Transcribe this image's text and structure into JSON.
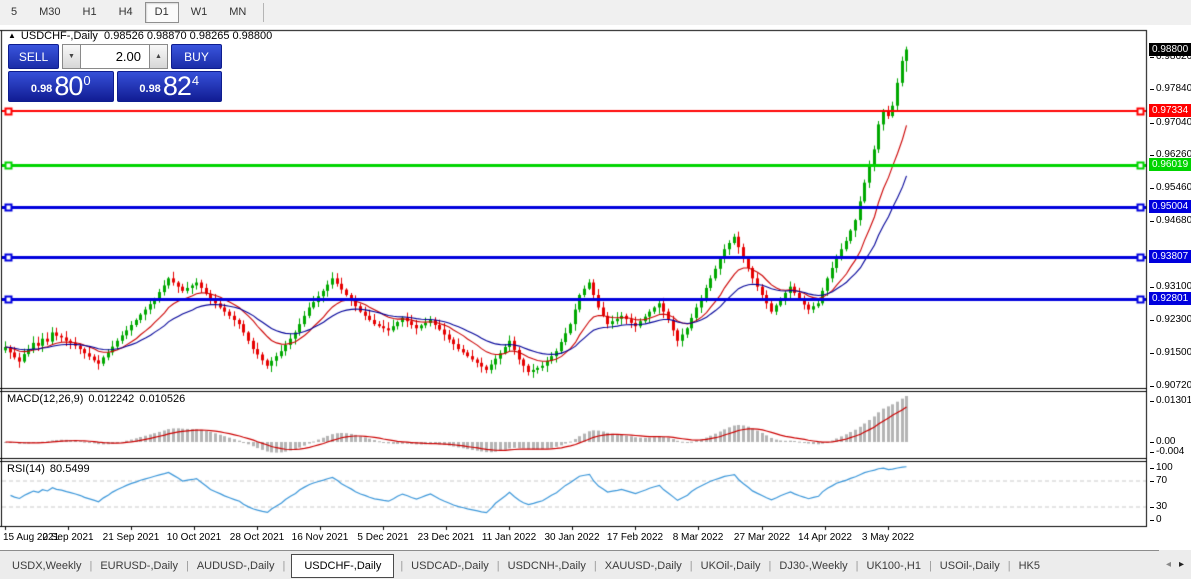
{
  "toolbar": {
    "timeframes": [
      {
        "label": "5",
        "active": false
      },
      {
        "label": "M30",
        "active": false
      },
      {
        "label": "H1",
        "active": false
      },
      {
        "label": "H4",
        "active": false
      },
      {
        "label": "D1",
        "active": true
      },
      {
        "label": "W1",
        "active": false
      },
      {
        "label": "MN",
        "active": false
      }
    ]
  },
  "chart": {
    "title": "USDCHF-,Daily",
    "ohlc": "0.98526 0.98870 0.98265 0.98800"
  },
  "trade_panel": {
    "sell_label": "SELL",
    "buy_label": "BUY",
    "volume": "2.00",
    "sell_price": {
      "small": "0.98",
      "big": "80",
      "sup": "0"
    },
    "buy_price": {
      "small": "0.98",
      "big": "82",
      "sup": "4"
    }
  },
  "indicators": {
    "macd": {
      "label": "MACD(12,26,9)",
      "value_main": "0.012242",
      "value_signal": "0.010526"
    },
    "rsi": {
      "label": "RSI(14)",
      "value": "80.5499"
    }
  },
  "icons": {
    "collapse": "▲",
    "caret_up": "▲",
    "caret_down": "▼",
    "tab_scroll_left": "◂",
    "tab_scroll_right": "▸"
  },
  "colors": {
    "up": "#00a800",
    "down": "#e60000",
    "ma_fast": "#cc0000",
    "ma_slow": "#000099",
    "macd_hist": "#b4b4b4",
    "macd_signal": "#cc0000",
    "rsi": "#3a96d9",
    "rsi_level_dash": "#c8c8c8",
    "axis_black": "#000000"
  },
  "chart_data": {
    "type": "candlestick",
    "symbol": "USDCHF-",
    "timeframe": "Daily",
    "last_ohlc": {
      "open": 0.98526,
      "high": 0.9887,
      "low": 0.98265,
      "close": 0.988
    },
    "price_top": 0.99269,
    "price_bottom": 0.90665,
    "closes": [
      0.9165,
      0.9152,
      0.914,
      0.913,
      0.9148,
      0.916,
      0.9175,
      0.9168,
      0.9185,
      0.9178,
      0.92,
      0.9192,
      0.9188,
      0.918,
      0.9175,
      0.9168,
      0.916,
      0.915,
      0.9142,
      0.9133,
      0.9125,
      0.914,
      0.9152,
      0.9166,
      0.918,
      0.9193,
      0.9205,
      0.9218,
      0.923,
      0.9243,
      0.9255,
      0.9268,
      0.928,
      0.9297,
      0.9313,
      0.933,
      0.932,
      0.931,
      0.93,
      0.9307,
      0.9313,
      0.932,
      0.9307,
      0.9293,
      0.928,
      0.927,
      0.926,
      0.925,
      0.924,
      0.923,
      0.922,
      0.92,
      0.918,
      0.916,
      0.9147,
      0.9133,
      0.912,
      0.9132,
      0.9143,
      0.9155,
      0.917,
      0.9185,
      0.92,
      0.922,
      0.924,
      0.926,
      0.9273,
      0.9287,
      0.93,
      0.9315,
      0.933,
      0.9317,
      0.9303,
      0.929,
      0.9277,
      0.9263,
      0.925,
      0.924,
      0.923,
      0.922,
      0.9215,
      0.921,
      0.9205,
      0.9215,
      0.9225,
      0.9235,
      0.9227,
      0.9218,
      0.921,
      0.9217,
      0.9223,
      0.923,
      0.9218,
      0.9207,
      0.9195,
      0.9183,
      0.9172,
      0.916,
      0.9152,
      0.9143,
      0.9135,
      0.9127,
      0.9118,
      0.911,
      0.9123,
      0.9137,
      0.915,
      0.9165,
      0.918,
      0.9158,
      0.9135,
      0.912,
      0.9105,
      0.911,
      0.9115,
      0.912,
      0.9132,
      0.9143,
      0.9155,
      0.9177,
      0.9198,
      0.922,
      0.9255,
      0.929,
      0.9305,
      0.932,
      0.929,
      0.926,
      0.924,
      0.922,
      0.9227,
      0.9233,
      0.924,
      0.9232,
      0.9223,
      0.9215,
      0.9227,
      0.9238,
      0.925,
      0.926,
      0.927,
      0.925,
      0.923,
      0.9205,
      0.918,
      0.9195,
      0.921,
      0.9235,
      0.926,
      0.9283,
      0.9307,
      0.933,
      0.9353,
      0.9377,
      0.94,
      0.9415,
      0.943,
      0.9405,
      0.938,
      0.9355,
      0.933,
      0.931,
      0.929,
      0.927,
      0.925,
      0.9265,
      0.928,
      0.9295,
      0.931,
      0.9295,
      0.928,
      0.9267,
      0.9255,
      0.9263,
      0.927,
      0.93,
      0.933,
      0.9355,
      0.938,
      0.94,
      0.942,
      0.9445,
      0.947,
      0.9515,
      0.956,
      0.96,
      0.964,
      0.97,
      0.973,
      0.972,
      0.9745,
      0.98,
      0.98526,
      0.988
    ],
    "ma_lines": [
      {
        "period": 12,
        "color": "#cc0000"
      },
      {
        "period": 24,
        "color": "#000099"
      }
    ],
    "levels": [
      {
        "price": 0.97334,
        "label": "0.97334",
        "color": "#ff0000",
        "width": 2
      },
      {
        "price": 0.96019,
        "label": "0.96019",
        "color": "#00d400",
        "width": 3
      },
      {
        "price": 0.95004,
        "label": "0.95004",
        "color": "#0000dd",
        "width": 3
      },
      {
        "price": 0.93807,
        "label": "0.93807",
        "color": "#0000dd",
        "width": 3
      },
      {
        "price": 0.92801,
        "label": "0.92801",
        "color": "#0000dd",
        "width": 3
      }
    ],
    "current_price": {
      "label": "0.98800",
      "price": 0.988,
      "bg": "#000000"
    },
    "price_axis_ticks": [
      "0.98620",
      "0.97840",
      "0.97040",
      "0.96260",
      "0.95460",
      "0.94680",
      "0.93100",
      "0.92300",
      "0.91500",
      "0.90720"
    ],
    "x_axis": {
      "labels": [
        "15 Aug 2021",
        "2 Sep 2021",
        "21 Sep 2021",
        "10 Oct 2021",
        "28 Oct 2021",
        "16 Nov 2021",
        "5 Dec 2021",
        "23 Dec 2021",
        "11 Jan 2022",
        "30 Jan 2022",
        "17 Feb 2022",
        "8 Mar 2022",
        "27 Mar 2022",
        "14 Apr 2022",
        "3 May 2022"
      ],
      "indices": [
        0,
        13.5,
        27,
        40.5,
        54,
        67.5,
        81,
        94.5,
        108,
        121.5,
        135,
        148.5,
        162,
        175.5,
        189
      ]
    },
    "macd": {
      "params": [
        12,
        26,
        9
      ],
      "value_main": 0.012242,
      "value_signal": 0.010526,
      "axis_labels": [
        "0.013015",
        "0.00",
        "-0.004"
      ]
    },
    "rsi": {
      "period": 14,
      "value": 80.5499,
      "axis_labels": [
        "100",
        "70",
        "30",
        "0"
      ],
      "level_lines": [
        70,
        30
      ]
    }
  },
  "tabs": {
    "items": [
      "USDX,Weekly",
      "EURUSD-,Daily",
      "AUDUSD-,Daily",
      "USDCHF-,Daily",
      "USDCAD-,Daily",
      "USDCNH-,Daily",
      "XAUUSD-,Daily",
      "UKOil-,Daily",
      "DJ30-,Weekly",
      "UK100-,H1",
      "USOil-,Daily",
      "HK5"
    ],
    "active_index": 3
  }
}
